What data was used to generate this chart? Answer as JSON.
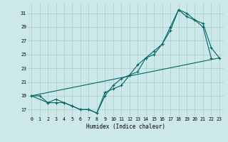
{
  "title": "",
  "xlabel": "Humidex (Indice chaleur)",
  "bg_color": "#cce8e8",
  "grid_color": "#aacccc",
  "line_color": "#006666",
  "xlim": [
    -0.5,
    23.5
  ],
  "ylim": [
    16.0,
    32.5
  ],
  "yticks": [
    17,
    19,
    21,
    23,
    25,
    27,
    29,
    31
  ],
  "xticks": [
    0,
    1,
    2,
    3,
    4,
    5,
    6,
    7,
    8,
    9,
    10,
    11,
    12,
    13,
    14,
    15,
    16,
    17,
    18,
    19,
    20,
    21,
    22,
    23
  ],
  "line1_x": [
    0,
    1,
    2,
    3,
    4,
    5,
    6,
    7,
    8,
    9,
    10,
    11,
    12,
    13,
    14,
    15,
    16,
    17,
    18,
    19,
    20,
    21,
    22
  ],
  "line1_y": [
    19,
    19,
    18,
    18,
    18,
    17.5,
    17,
    17,
    16.5,
    19.5,
    20,
    20.5,
    22,
    22.5,
    24.5,
    25,
    26.5,
    28.5,
    31.5,
    31,
    30,
    29,
    24.5
  ],
  "line2_x": [
    0,
    2,
    3,
    4,
    5,
    6,
    7,
    8,
    9,
    10,
    11,
    12,
    13,
    14,
    15,
    16,
    17,
    18,
    19,
    20,
    21,
    22,
    23
  ],
  "line2_y": [
    19,
    18,
    18.5,
    18,
    17.5,
    17,
    17,
    16.5,
    19,
    20.5,
    21.5,
    22,
    23.5,
    24.5,
    25.5,
    26.5,
    29,
    31.5,
    30.5,
    30,
    29.5,
    26,
    24.5
  ],
  "line3_x": [
    0,
    23
  ],
  "line3_y": [
    19,
    24.5
  ]
}
